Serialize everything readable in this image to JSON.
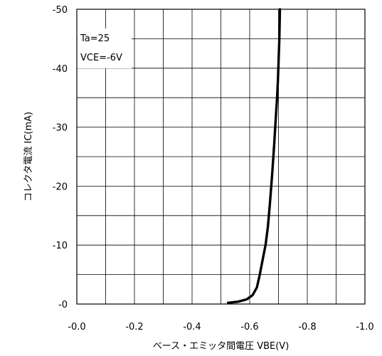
{
  "chart_data": {
    "type": "line",
    "title": "",
    "xlabel": "ベース・エミッタ間電圧 VBE(V)",
    "ylabel": "コレクタ電流 IC(mA)",
    "xlim": [
      0.0,
      -1.0
    ],
    "ylim": [
      0,
      -50
    ],
    "x_ticks": [
      0.0,
      -0.2,
      -0.4,
      -0.6,
      -0.8,
      -1.0
    ],
    "x_tick_labels": [
      "-0.0",
      "-0.2",
      "-0.4",
      "-0.6",
      "-0.8",
      "-1.0"
    ],
    "y_ticks": [
      0,
      -10,
      -20,
      -30,
      -40,
      -50
    ],
    "y_tick_labels": [
      "-0",
      "-10",
      "-20",
      "-30",
      "-40",
      "-50"
    ],
    "grid": true,
    "legend": "none",
    "annotations": [
      "Ta=25",
      "VCE=-6V"
    ],
    "series": [
      {
        "color": "#000000",
        "x": [
          -0.525,
          -0.56,
          -0.59,
          -0.61,
          -0.625,
          -0.635,
          -0.645,
          -0.655,
          -0.663,
          -0.67,
          -0.678,
          -0.685,
          -0.69,
          -0.695,
          -0.698,
          -0.703,
          -0.705
        ],
        "y": [
          -0.2,
          -0.4,
          -0.8,
          -1.5,
          -2.8,
          -5,
          -7.5,
          -10,
          -13,
          -17,
          -22,
          -27,
          -31,
          -35,
          -38,
          -45,
          -50
        ]
      }
    ]
  }
}
